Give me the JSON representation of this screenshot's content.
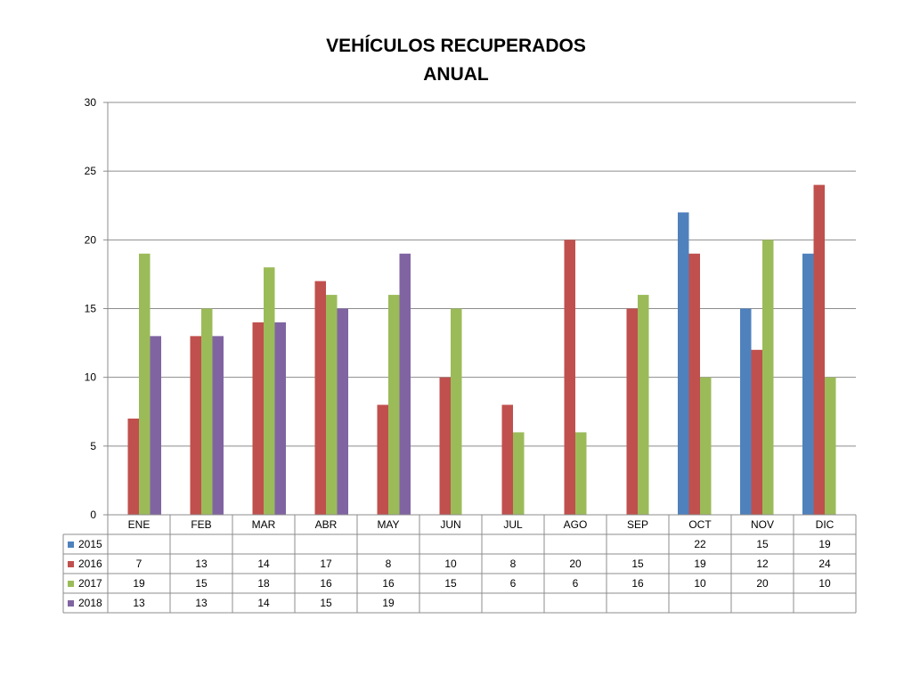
{
  "chart_data": {
    "type": "bar",
    "title": [
      "VEHÍCULOS RECUPERADOS",
      "ANUAL"
    ],
    "categories": [
      "ENE",
      "FEB",
      "MAR",
      "ABR",
      "MAY",
      "JUN",
      "JUL",
      "AGO",
      "SEP",
      "OCT",
      "NOV",
      "DIC"
    ],
    "series": [
      {
        "name": "2015",
        "color": "#4F81BD",
        "values": [
          null,
          null,
          null,
          null,
          null,
          null,
          null,
          null,
          null,
          22,
          15,
          19
        ]
      },
      {
        "name": "2016",
        "color": "#C0504D",
        "values": [
          7,
          13,
          14,
          17,
          8,
          10,
          8,
          20,
          15,
          19,
          12,
          24
        ]
      },
      {
        "name": "2017",
        "color": "#9BBB59",
        "values": [
          19,
          15,
          18,
          16,
          16,
          15,
          6,
          6,
          16,
          10,
          20,
          10
        ]
      },
      {
        "name": "2018",
        "color": "#8064A2",
        "values": [
          13,
          13,
          14,
          15,
          19,
          null,
          null,
          null,
          null,
          null,
          null,
          null
        ]
      }
    ],
    "ylim": [
      0,
      30
    ],
    "yticks": [
      0,
      5,
      10,
      15,
      20,
      25,
      30
    ],
    "grid": true,
    "legend": "data table below chart"
  }
}
